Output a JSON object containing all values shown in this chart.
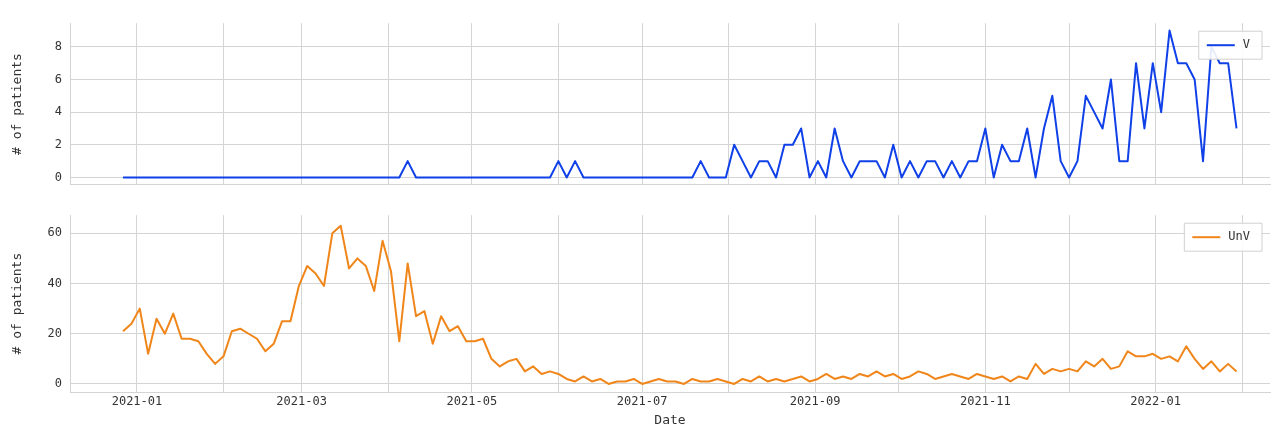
{
  "chart_data": [
    {
      "type": "line",
      "ylabel": "# of patients",
      "legend": "top right",
      "grid": true,
      "tick_labels": "y",
      "marker": "none",
      "line_style": "solid",
      "xlim": [
        "2020-12-08",
        "2022-02-11"
      ],
      "xticks": [
        "2021-01",
        {
          "value": "2021-02",
          "label": null
        },
        "2021-03",
        {
          "value": "2021-04",
          "label": null
        },
        "2021-05",
        {
          "value": "2021-06",
          "label": null
        },
        "2021-07",
        {
          "value": "2021-08",
          "label": null
        },
        "2021-09",
        {
          "value": "2021-10",
          "label": null
        },
        "2021-11",
        {
          "value": "2021-12",
          "label": null
        },
        "2022-01",
        {
          "value": "2022-02",
          "label": null
        }
      ],
      "ylim": [
        -0.45,
        9.45
      ],
      "yticks": [
        0,
        2,
        4,
        6,
        8
      ],
      "x": [
        "2020-12-27",
        "2020-12-30",
        "2021-01-02",
        "2021-01-05",
        "2021-01-08",
        "2021-01-11",
        "2021-01-14",
        "2021-01-17",
        "2021-01-20",
        "2021-01-23",
        "2021-01-26",
        "2021-01-29",
        "2021-02-01",
        "2021-02-04",
        "2021-02-07",
        "2021-02-10",
        "2021-02-13",
        "2021-02-16",
        "2021-02-19",
        "2021-02-22",
        "2021-02-25",
        "2021-02-28",
        "2021-03-03",
        "2021-03-06",
        "2021-03-09",
        "2021-03-12",
        "2021-03-15",
        "2021-03-18",
        "2021-03-21",
        "2021-03-24",
        "2021-03-27",
        "2021-03-30",
        "2021-04-02",
        "2021-04-05",
        "2021-04-08",
        "2021-04-11",
        "2021-04-14",
        "2021-04-17",
        "2021-04-20",
        "2021-04-23",
        "2021-04-26",
        "2021-04-29",
        "2021-05-02",
        "2021-05-05",
        "2021-05-08",
        "2021-05-11",
        "2021-05-14",
        "2021-05-17",
        "2021-05-20",
        "2021-05-23",
        "2021-05-26",
        "2021-05-29",
        "2021-06-01",
        "2021-06-04",
        "2021-06-07",
        "2021-06-10",
        "2021-06-13",
        "2021-06-16",
        "2021-06-19",
        "2021-06-22",
        "2021-06-25",
        "2021-06-28",
        "2021-07-01",
        "2021-07-04",
        "2021-07-07",
        "2021-07-10",
        "2021-07-13",
        "2021-07-16",
        "2021-07-19",
        "2021-07-22",
        "2021-07-25",
        "2021-07-28",
        "2021-07-31",
        "2021-08-03",
        "2021-08-06",
        "2021-08-09",
        "2021-08-12",
        "2021-08-15",
        "2021-08-18",
        "2021-08-21",
        "2021-08-24",
        "2021-08-27",
        "2021-08-30",
        "2021-09-02",
        "2021-09-05",
        "2021-09-08",
        "2021-09-11",
        "2021-09-14",
        "2021-09-17",
        "2021-09-20",
        "2021-09-23",
        "2021-09-26",
        "2021-09-29",
        "2021-10-02",
        "2021-10-05",
        "2021-10-08",
        "2021-10-11",
        "2021-10-14",
        "2021-10-17",
        "2021-10-20",
        "2021-10-23",
        "2021-10-26",
        "2021-10-29",
        "2021-11-01",
        "2021-11-04",
        "2021-11-07",
        "2021-11-10",
        "2021-11-13",
        "2021-11-16",
        "2021-11-19",
        "2021-11-22",
        "2021-11-25",
        "2021-11-28",
        "2021-12-01",
        "2021-12-04",
        "2021-12-07",
        "2021-12-10",
        "2021-12-13",
        "2021-12-16",
        "2021-12-19",
        "2021-12-22",
        "2021-12-25",
        "2021-12-28",
        "2021-12-31",
        "2022-01-03",
        "2022-01-06",
        "2022-01-09",
        "2022-01-12",
        "2022-01-15",
        "2022-01-18",
        "2022-01-21",
        "2022-01-24",
        "2022-01-27",
        "2022-01-30"
      ],
      "series": [
        {
          "name": "V",
          "color": "#1040e8",
          "values": [
            0,
            0,
            0,
            0,
            0,
            0,
            0,
            0,
            0,
            0,
            0,
            0,
            0,
            0,
            0,
            0,
            0,
            0,
            0,
            0,
            0,
            0,
            0,
            0,
            0,
            0,
            0,
            0,
            0,
            0,
            0,
            0,
            0,
            0,
            1,
            0,
            0,
            0,
            0,
            0,
            0,
            0,
            0,
            0,
            0,
            0,
            0,
            0,
            0,
            0,
            0,
            0,
            1,
            0,
            1,
            0,
            0,
            0,
            0,
            0,
            0,
            0,
            0,
            0,
            0,
            0,
            0,
            0,
            0,
            1,
            0,
            0,
            0,
            2,
            1,
            0,
            1,
            1,
            0,
            2,
            2,
            3,
            0,
            1,
            0,
            3,
            1,
            0,
            1,
            1,
            1,
            0,
            2,
            0,
            1,
            0,
            1,
            1,
            0,
            1,
            0,
            1,
            1,
            3,
            0,
            2,
            1,
            1,
            3,
            0,
            3,
            5,
            1,
            0,
            1,
            5,
            4,
            3,
            6,
            1,
            1,
            7,
            3,
            7,
            4,
            9,
            7,
            7,
            6,
            1,
            8,
            7,
            7,
            3
          ]
        }
      ]
    },
    {
      "type": "line",
      "xlabel": "Date",
      "ylabel": "# of patients",
      "legend": "top right",
      "grid": true,
      "marker": "none",
      "line_style": "solid",
      "xlim": [
        "2020-12-08",
        "2022-02-11"
      ],
      "xticks": [
        "2021-01",
        {
          "value": "2021-02",
          "label": null
        },
        "2021-03",
        {
          "value": "2021-04",
          "label": null
        },
        "2021-05",
        {
          "value": "2021-06",
          "label": null
        },
        "2021-07",
        {
          "value": "2021-08",
          "label": null
        },
        "2021-09",
        {
          "value": "2021-10",
          "label": null
        },
        "2021-11",
        {
          "value": "2021-12",
          "label": null
        },
        "2022-01",
        {
          "value": "2022-02",
          "label": null
        }
      ],
      "ylim": [
        -3.2,
        67.2
      ],
      "yticks": [
        0,
        20,
        40,
        60
      ],
      "x": [
        "2020-12-27",
        "2020-12-30",
        "2021-01-02",
        "2021-01-05",
        "2021-01-08",
        "2021-01-11",
        "2021-01-14",
        "2021-01-17",
        "2021-01-20",
        "2021-01-23",
        "2021-01-26",
        "2021-01-29",
        "2021-02-01",
        "2021-02-04",
        "2021-02-07",
        "2021-02-10",
        "2021-02-13",
        "2021-02-16",
        "2021-02-19",
        "2021-02-22",
        "2021-02-25",
        "2021-02-28",
        "2021-03-03",
        "2021-03-06",
        "2021-03-09",
        "2021-03-12",
        "2021-03-15",
        "2021-03-18",
        "2021-03-21",
        "2021-03-24",
        "2021-03-27",
        "2021-03-30",
        "2021-04-02",
        "2021-04-05",
        "2021-04-08",
        "2021-04-11",
        "2021-04-14",
        "2021-04-17",
        "2021-04-20",
        "2021-04-23",
        "2021-04-26",
        "2021-04-29",
        "2021-05-02",
        "2021-05-05",
        "2021-05-08",
        "2021-05-11",
        "2021-05-14",
        "2021-05-17",
        "2021-05-20",
        "2021-05-23",
        "2021-05-26",
        "2021-05-29",
        "2021-06-01",
        "2021-06-04",
        "2021-06-07",
        "2021-06-10",
        "2021-06-13",
        "2021-06-16",
        "2021-06-19",
        "2021-06-22",
        "2021-06-25",
        "2021-06-28",
        "2021-07-01",
        "2021-07-04",
        "2021-07-07",
        "2021-07-10",
        "2021-07-13",
        "2021-07-16",
        "2021-07-19",
        "2021-07-22",
        "2021-07-25",
        "2021-07-28",
        "2021-07-31",
        "2021-08-03",
        "2021-08-06",
        "2021-08-09",
        "2021-08-12",
        "2021-08-15",
        "2021-08-18",
        "2021-08-21",
        "2021-08-24",
        "2021-08-27",
        "2021-08-30",
        "2021-09-02",
        "2021-09-05",
        "2021-09-08",
        "2021-09-11",
        "2021-09-14",
        "2021-09-17",
        "2021-09-20",
        "2021-09-23",
        "2021-09-26",
        "2021-09-29",
        "2021-10-02",
        "2021-10-05",
        "2021-10-08",
        "2021-10-11",
        "2021-10-14",
        "2021-10-17",
        "2021-10-20",
        "2021-10-23",
        "2021-10-26",
        "2021-10-29",
        "2021-11-01",
        "2021-11-04",
        "2021-11-07",
        "2021-11-10",
        "2021-11-13",
        "2021-11-16",
        "2021-11-19",
        "2021-11-22",
        "2021-11-25",
        "2021-11-28",
        "2021-12-01",
        "2021-12-04",
        "2021-12-07",
        "2021-12-10",
        "2021-12-13",
        "2021-12-16",
        "2021-12-19",
        "2021-12-22",
        "2021-12-25",
        "2021-12-28",
        "2021-12-31",
        "2022-01-03",
        "2022-01-06",
        "2022-01-09",
        "2022-01-12",
        "2022-01-15",
        "2022-01-18",
        "2022-01-21",
        "2022-01-24",
        "2022-01-27",
        "2022-01-30"
      ],
      "series": [
        {
          "name": "UnV",
          "color": "#f0861a",
          "values": [
            21,
            24,
            30,
            12,
            26,
            20,
            28,
            18,
            18,
            17,
            12,
            8,
            11,
            21,
            22,
            20,
            18,
            13,
            16,
            25,
            25,
            39,
            47,
            44,
            39,
            60,
            63,
            46,
            50,
            47,
            37,
            57,
            45,
            17,
            48,
            27,
            29,
            16,
            27,
            21,
            23,
            17,
            17,
            18,
            10,
            7,
            9,
            10,
            5,
            7,
            4,
            5,
            4,
            2,
            1,
            3,
            1,
            2,
            0,
            1,
            1,
            2,
            0,
            1,
            2,
            1,
            1,
            0,
            2,
            1,
            1,
            2,
            1,
            0,
            2,
            1,
            3,
            1,
            2,
            1,
            2,
            3,
            1,
            2,
            4,
            2,
            3,
            2,
            4,
            3,
            5,
            3,
            4,
            2,
            3,
            5,
            4,
            2,
            3,
            4,
            3,
            2,
            4,
            3,
            2,
            3,
            1,
            3,
            2,
            8,
            4,
            6,
            5,
            6,
            5,
            9,
            7,
            10,
            6,
            7,
            13,
            11,
            11,
            12,
            10,
            11,
            9,
            15,
            10,
            6,
            9,
            5,
            8,
            5
          ]
        }
      ]
    }
  ]
}
